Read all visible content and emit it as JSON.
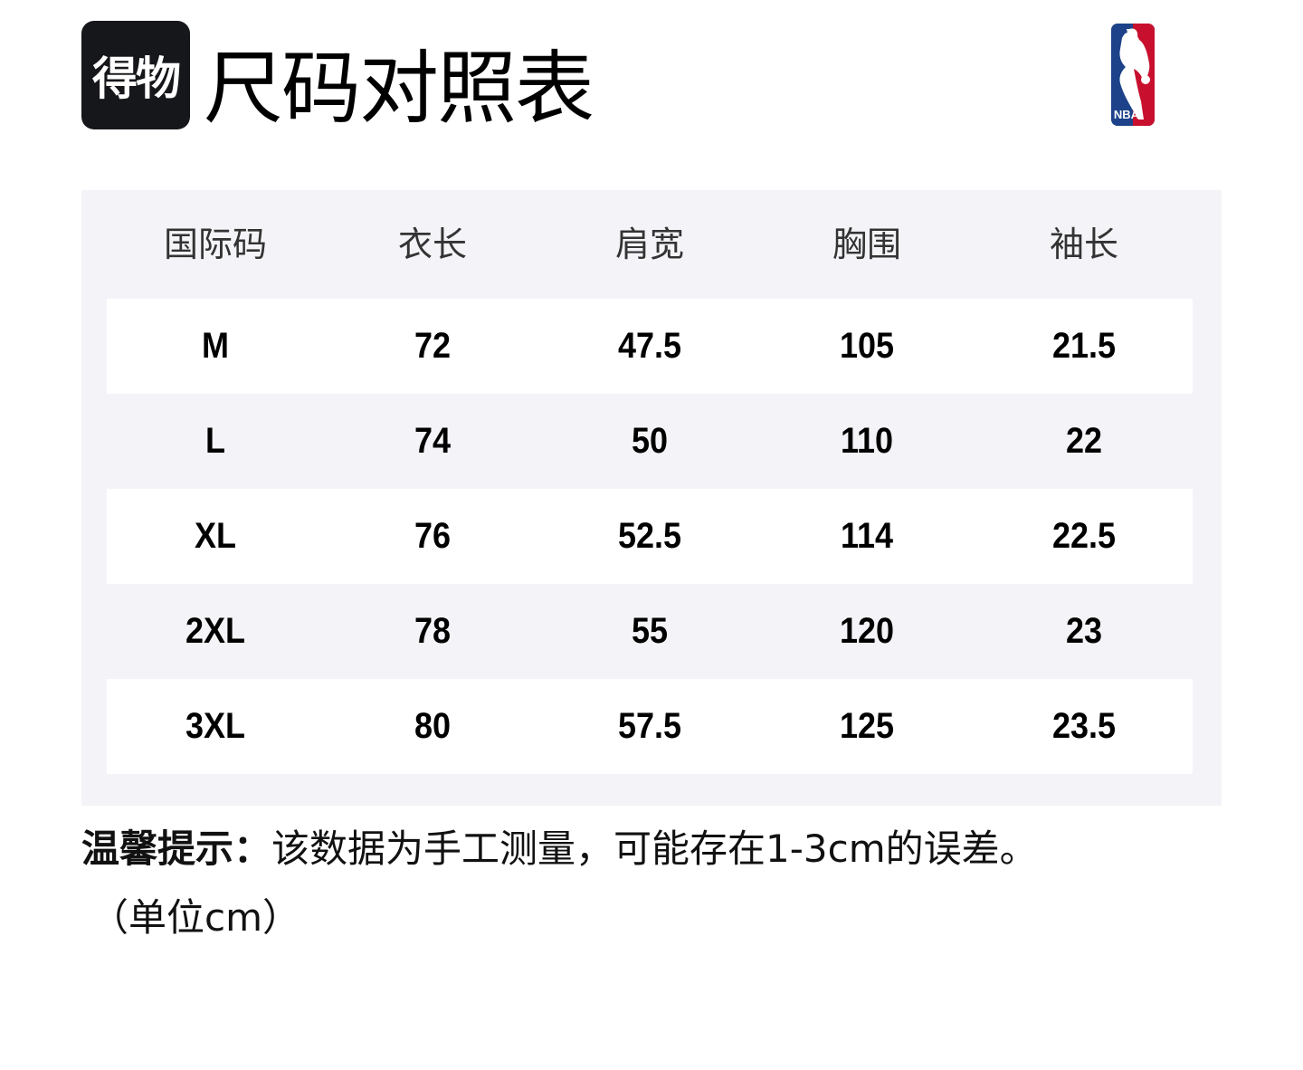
{
  "brand": {
    "logo_text": "得物"
  },
  "title": "尺码对照表",
  "nba_logo": {
    "text": "NBA",
    "colors": {
      "blue": "#1d428a",
      "red": "#c8102e"
    }
  },
  "table": {
    "headers": [
      "国际码",
      "衣长",
      "肩宽",
      "胸围",
      "袖长"
    ],
    "rows": [
      [
        "M",
        "72",
        "47.5",
        "105",
        "21.5"
      ],
      [
        "L",
        "74",
        "50",
        "110",
        "22"
      ],
      [
        "XL",
        "76",
        "52.5",
        "114",
        "22.5"
      ],
      [
        "2XL",
        "78",
        "55",
        "120",
        "23"
      ],
      [
        "3XL",
        "80",
        "57.5",
        "125",
        "23.5"
      ]
    ]
  },
  "note": {
    "label": "温馨提示：",
    "text": "该数据为手工测量，可能存在1-3cm的误差。",
    "unit": "（单位cm）"
  }
}
